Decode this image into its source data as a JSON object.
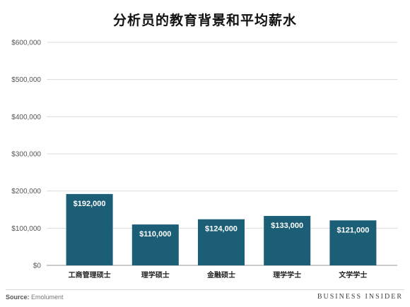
{
  "chart_data": {
    "type": "bar",
    "title": "分析员的教育背景和平均薪水",
    "categories": [
      "工商管理硕士",
      "理学硕士",
      "金融硕士",
      "理学学士",
      "文学学士"
    ],
    "values": [
      192000,
      110000,
      124000,
      133000,
      121000
    ],
    "data_labels": [
      "$192,000",
      "$110,000",
      "$124,000",
      "$133,000",
      "$121,000"
    ],
    "y_ticks": [
      0,
      100000,
      200000,
      300000,
      400000,
      500000,
      600000
    ],
    "y_tick_labels": [
      "$0",
      "$100,000",
      "$200,000",
      "$300,000",
      "$400,000",
      "$500,000",
      "$600,000"
    ],
    "ylim": [
      0,
      600000
    ],
    "grid": true,
    "xlabel": "",
    "ylabel": "",
    "bar_color": "#1b5e75"
  },
  "footer": {
    "source_key": "Source:",
    "source_value": " Emolument",
    "brand": "BUSINESS INSIDER"
  }
}
